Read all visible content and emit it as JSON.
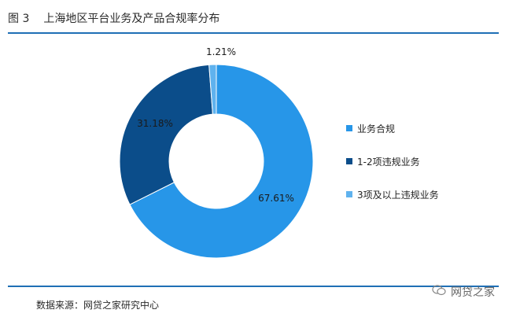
{
  "header": {
    "figure_no": "图 3",
    "title": "上海地区平台业务及产品合规率分布"
  },
  "footer": {
    "source": "数据来源：网贷之家研究中心",
    "watermark_text": "网贷之家"
  },
  "chart_data": {
    "type": "pie",
    "donut": true,
    "categories": [
      "业务合规",
      "1-2项违规业务",
      "3项及以上违规业务"
    ],
    "values": [
      67.61,
      31.18,
      1.21
    ],
    "value_labels": [
      "67.61%",
      "31.18%",
      "1.21%"
    ],
    "colors": [
      "#2796e8",
      "#0b4d8a",
      "#5fb2ee"
    ],
    "legend_placement": "right",
    "start": "top, clockwise"
  }
}
